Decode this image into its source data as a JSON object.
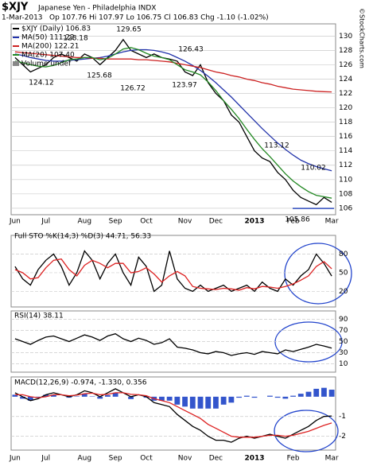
{
  "chart_data": [
    {
      "type": "line",
      "title": "$XJY",
      "subtitle": "Japanese Yen - Philadelphia INDX",
      "date": "1-Mar-2013",
      "quote": "Op 107.76 Hi 107.97 Lo 106.75 Cl 106.83 Chg -1.10 (-1.02%)",
      "source": "©StockCharts.com",
      "volume_label": "Volume undef",
      "categories": [
        "Jun",
        null,
        null,
        null,
        "Jul",
        null,
        null,
        null,
        null,
        "Aug",
        null,
        null,
        null,
        "Sep",
        null,
        null,
        null,
        "Oct",
        null,
        null,
        null,
        null,
        "Nov",
        null,
        null,
        null,
        "Dec",
        null,
        null,
        null,
        null,
        "2013",
        null,
        null,
        null,
        null,
        "Feb",
        null,
        null,
        null,
        null,
        "Mar"
      ],
      "series": [
        {
          "name": "$XJY (Daily) 106.83",
          "color": "#000000",
          "values": [
            127,
            126,
            125,
            125.5,
            126,
            127,
            127.5,
            127,
            126.5,
            127.5,
            127,
            126,
            127,
            128,
            129.5,
            128,
            127.5,
            127,
            127.5,
            127,
            126.8,
            126.5,
            125,
            124.5,
            126,
            123.5,
            122,
            121,
            119,
            118,
            116,
            114,
            113,
            112.5,
            111,
            110,
            108.5,
            107.5,
            107,
            106.5,
            107.5,
            106.83
          ]
        },
        {
          "name": "MA(50) 111.22",
          "color": "#2233aa",
          "values": [
            127.5,
            127.3,
            127,
            126.8,
            126.6,
            126.5,
            126.5,
            126.6,
            126.7,
            126.8,
            126.9,
            127,
            127.2,
            127.5,
            127.8,
            128,
            128.1,
            128.1,
            128,
            127.8,
            127.5,
            127,
            126.5,
            125.9,
            125.2,
            124.4,
            123.5,
            122.5,
            121.5,
            120.4,
            119.3,
            118.2,
            117.1,
            116.1,
            115.1,
            114.2,
            113.4,
            112.7,
            112.2,
            111.8,
            111.5,
            111.22
          ]
        },
        {
          "name": "MA(200) 122.21",
          "color": "#cc2222",
          "values": [
            127.8,
            127.7,
            127.6,
            127.5,
            127.4,
            127.3,
            127.2,
            127.1,
            127,
            127,
            126.9,
            126.9,
            126.8,
            126.8,
            126.8,
            126.8,
            126.7,
            126.7,
            126.6,
            126.5,
            126.4,
            126.2,
            126,
            125.8,
            125.6,
            125.3,
            125,
            124.8,
            124.5,
            124.3,
            124,
            123.8,
            123.5,
            123.3,
            123,
            122.8,
            122.6,
            122.5,
            122.4,
            122.3,
            122.25,
            122.21
          ]
        },
        {
          "name": "MA(20) 107.40",
          "color": "#228822",
          "values": [
            126.5,
            126.3,
            126,
            125.8,
            125.7,
            125.9,
            126.3,
            126.7,
            126.8,
            127,
            127,
            126.7,
            126.9,
            127.5,
            128.2,
            128.4,
            128.1,
            127.6,
            127.2,
            127,
            126.7,
            126,
            125.3,
            125,
            124.6,
            123.6,
            122.4,
            121,
            119.8,
            118.5,
            117,
            115.6,
            114.3,
            113.2,
            112,
            110.8,
            109.8,
            109,
            108.3,
            107.8,
            107.6,
            107.4
          ]
        }
      ],
      "annotations": [
        "128.18",
        "129.65",
        "126.43",
        "124.12",
        "125.68",
        "126.72",
        "123.97",
        "113.12",
        "110.02",
        "105.86"
      ],
      "ylim": [
        105.1,
        131.7
      ],
      "yticks": [
        106,
        108,
        110,
        112,
        114,
        116,
        118,
        120,
        122,
        124,
        126,
        128,
        130
      ],
      "grid": true
    },
    {
      "type": "line",
      "title": "Full STO %K(14,3) %D(3) 44.71, 56.33",
      "series": [
        {
          "color": "#000000",
          "values": [
            60,
            40,
            30,
            55,
            70,
            80,
            60,
            30,
            50,
            85,
            70,
            40,
            65,
            80,
            50,
            30,
            75,
            60,
            20,
            30,
            85,
            40,
            25,
            20,
            30,
            20,
            25,
            30,
            20,
            25,
            30,
            20,
            35,
            25,
            20,
            40,
            30,
            45,
            55,
            80,
            65,
            44.71
          ]
        },
        {
          "color": "#dd2222",
          "values": [
            55,
            50,
            40,
            42,
            58,
            70,
            72,
            55,
            45,
            62,
            70,
            65,
            58,
            65,
            65,
            50,
            52,
            58,
            48,
            35,
            45,
            52,
            45,
            28,
            25,
            24,
            23,
            25,
            24,
            22,
            26,
            24,
            28,
            27,
            25,
            28,
            32,
            38,
            45,
            60,
            68,
            56.33
          ]
        }
      ],
      "ylim": [
        -5,
        110
      ],
      "yticks": [
        20,
        50,
        80
      ],
      "grid": true
    },
    {
      "type": "line",
      "title": "RSI(14) 38.11",
      "series": [
        {
          "color": "#000000",
          "values": [
            55,
            50,
            45,
            52,
            58,
            60,
            55,
            50,
            56,
            62,
            58,
            52,
            60,
            64,
            55,
            50,
            56,
            52,
            45,
            48,
            55,
            40,
            38,
            35,
            30,
            28,
            32,
            30,
            25,
            28,
            30,
            27,
            32,
            30,
            28,
            35,
            32,
            36,
            40,
            45,
            42,
            38.11
          ]
        }
      ],
      "ylim": [
        -5,
        105
      ],
      "yticks": [
        10,
        30,
        50,
        70,
        90
      ],
      "grid": true
    },
    {
      "type": "line",
      "title": "MACD(12,26,9) -0.974, -1.330, 0.356",
      "categories": [
        "Jun",
        null,
        null,
        null,
        "Jul",
        null,
        null,
        null,
        null,
        "Aug",
        null,
        null,
        null,
        "Sep",
        null,
        null,
        null,
        "Oct",
        null,
        null,
        null,
        null,
        "Nov",
        null,
        null,
        null,
        "Dec",
        null,
        null,
        null,
        null,
        "2013",
        null,
        null,
        null,
        null,
        "Feb",
        null,
        null,
        null,
        null,
        "Mar"
      ],
      "series": [
        {
          "type": "bar",
          "color": "#3355cc",
          "values": [
            0.1,
            -0.1,
            -0.2,
            -0.05,
            0.1,
            0.1,
            0,
            -0.05,
            0.02,
            0.15,
            0.02,
            -0.1,
            0.08,
            0.2,
            0,
            -0.12,
            0,
            -0.05,
            -0.2,
            -0.2,
            -0.2,
            -0.4,
            -0.5,
            -0.6,
            -0.6,
            -0.6,
            -0.6,
            -0.4,
            -0.3,
            -0.05,
            0.05,
            -0.05,
            0,
            0.05,
            -0.05,
            -0.1,
            0.05,
            0.15,
            0.25,
            0.4,
            0.45,
            0.356
          ]
        },
        {
          "color": "#000000",
          "values": [
            0.2,
            0,
            -0.2,
            -0.1,
            0.1,
            0.2,
            0.1,
            0,
            0.1,
            0.3,
            0.2,
            0,
            0.2,
            0.4,
            0.2,
            0,
            0.1,
            0,
            -0.3,
            -0.4,
            -0.5,
            -0.9,
            -1.2,
            -1.5,
            -1.7,
            -2.0,
            -2.2,
            -2.2,
            -2.3,
            -2.1,
            -2.0,
            -2.1,
            -2.0,
            -1.9,
            -2.0,
            -2.1,
            -1.9,
            -1.7,
            -1.5,
            -1.2,
            -1.0,
            -0.974
          ]
        },
        {
          "color": "#dd2222",
          "values": [
            0.1,
            0.1,
            0,
            -0.05,
            0,
            0.1,
            0.1,
            0.05,
            0.08,
            0.15,
            0.18,
            0.1,
            0.12,
            0.2,
            0.2,
            0.12,
            0.1,
            0.05,
            -0.1,
            -0.2,
            -0.3,
            -0.5,
            -0.7,
            -0.9,
            -1.1,
            -1.4,
            -1.6,
            -1.8,
            -2.0,
            -2.05,
            -2.05,
            -2.05,
            -2.0,
            -1.95,
            -1.95,
            -2.0,
            -1.95,
            -1.85,
            -1.75,
            -1.6,
            -1.45,
            -1.33
          ]
        }
      ],
      "ylim": [
        -2.7,
        1.0
      ],
      "yticks": [
        -2,
        -1
      ],
      "grid": true
    }
  ]
}
